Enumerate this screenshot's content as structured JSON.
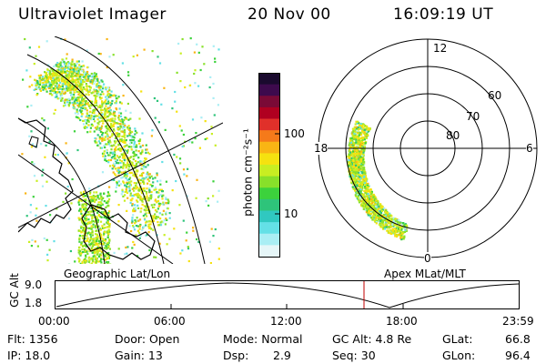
{
  "header": {
    "title": "Ultraviolet Imager",
    "date": "20 Nov 00",
    "time": "16:09:19 UT"
  },
  "colorbar": {
    "unit_label": "photon cm⁻²s⁻¹",
    "ticks": [
      "100",
      "10"
    ],
    "colors": [
      "#1a0a2e",
      "#3d0a4d",
      "#7a0a36",
      "#b00020",
      "#e0302a",
      "#f57a1a",
      "#f9b514",
      "#f5e210",
      "#c8ee22",
      "#88e02a",
      "#3cd23c",
      "#2ec47a",
      "#30c8c0",
      "#64e0e6",
      "#aaeef4",
      "#e6f6f8"
    ]
  },
  "panels": {
    "left_label": "Geographic Lat/Lon",
    "right_label": "Apex MLat/MLT"
  },
  "polar": {
    "mlt_labels": {
      "top": "12",
      "left": "18",
      "right": "6",
      "bottom": "0"
    },
    "lat_labels": [
      "60",
      "70",
      "80"
    ]
  },
  "altitude_plot": {
    "axis_label": "GC Alt",
    "y_ticks": [
      "9.0",
      "1.8"
    ],
    "x_ticks": [
      "00:00",
      "06:00",
      "12:00",
      "18:00",
      "23:59"
    ],
    "current_time_color": "#c00000"
  },
  "info": {
    "flt": "Flt: 1356",
    "ip": "IP: 18.0",
    "door": "Door: Open",
    "gain": "Gain: 13",
    "mode": "Mode: Normal",
    "dsp_label": "Dsp:",
    "dsp_value": "2.9",
    "gc_alt": "GC Alt: 4.8 Re",
    "seq": "Seq: 30",
    "glat_label": "GLat:",
    "glat_value": "66.8",
    "glon_label": "GLon:",
    "glon_value": "96.4"
  }
}
